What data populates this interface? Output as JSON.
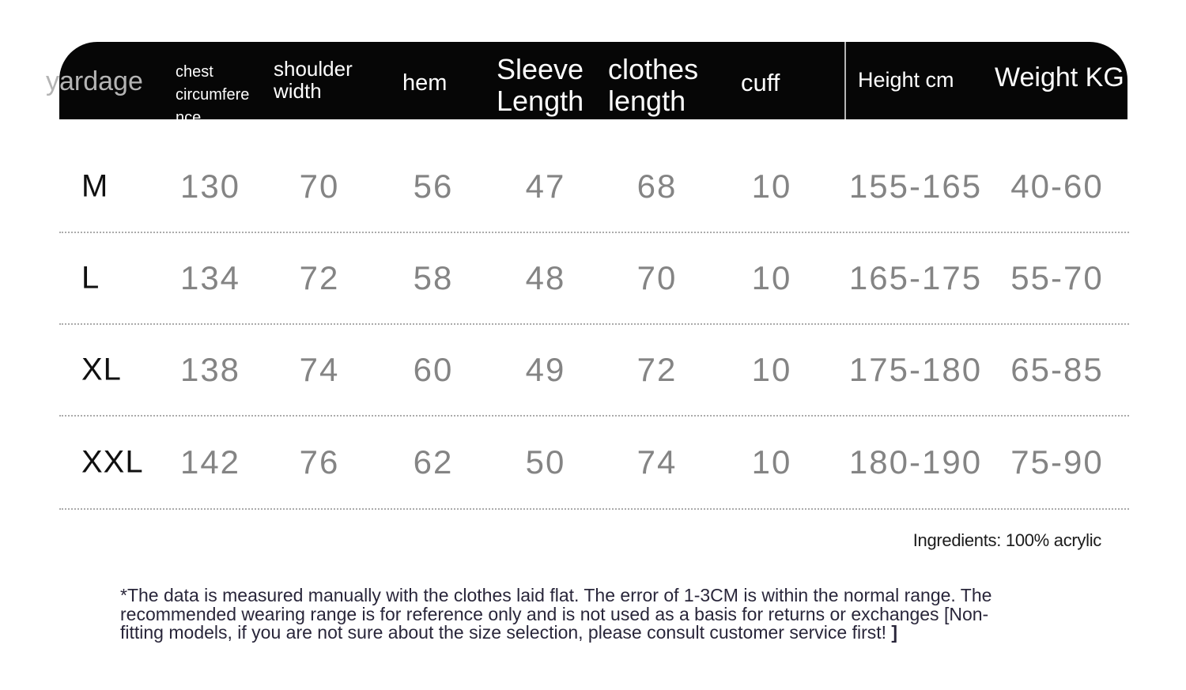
{
  "page": {
    "background": "#ffffff",
    "kind": "clothing-size-chart"
  },
  "colors": {
    "header_bg": "#060606",
    "header_text": "#fdfdfd",
    "yardage_text": "#b4b4b4",
    "header_divider": "#b5b5b5",
    "size_text": "#101010",
    "value_text": "#848484",
    "dotted_line": "#ababab",
    "ingredients_text": "#1b1b1b",
    "note_text": "#29263a"
  },
  "header": {
    "yardage_label": "yardage",
    "chest_line1": "chest",
    "chest_line2": "circumference",
    "shoulder_line1": "shoulder",
    "shoulder_line2": "width",
    "hem_label": "hem",
    "sleeve_line1": "Sleeve",
    "sleeve_line2": "Length",
    "clothes_line1": "clothes",
    "clothes_line2": "length",
    "cuff_label": "cuff",
    "height_label": "Height cm",
    "weight_label": "Weight KG"
  },
  "table": {
    "column_ids": [
      "yardage",
      "chest_circumference",
      "shoulder_width",
      "hem",
      "sleeve_length",
      "clothes_length",
      "cuff",
      "height_cm",
      "weight_kg"
    ],
    "rows": [
      {
        "size": "M",
        "chest": "130",
        "shoulder": "70",
        "hem": "56",
        "sleeve": "47",
        "clothes": "68",
        "cuff": "10",
        "height": "155-165",
        "weight": "40-60"
      },
      {
        "size": "L",
        "chest": "134",
        "shoulder": "72",
        "hem": "58",
        "sleeve": "48",
        "clothes": "70",
        "cuff": "10",
        "height": "165-175",
        "weight": "55-70"
      },
      {
        "size": "XL",
        "chest": "138",
        "shoulder": "74",
        "hem": "60",
        "sleeve": "49",
        "clothes": "72",
        "cuff": "10",
        "height": "175-180",
        "weight": "65-85"
      },
      {
        "size": "XXL",
        "chest": "142",
        "shoulder": "76",
        "hem": "62",
        "sleeve": "50",
        "clothes": "74",
        "cuff": "10",
        "height": "180-190",
        "weight": "75-90"
      }
    ]
  },
  "footer": {
    "ingredients": "Ingredients: 100% acrylic",
    "note_line1": "*The data is measured manually with the clothes laid flat. The error of 1-3CM is within the normal range. The",
    "note_line2": "recommended wearing range is for reference only and is not used as a basis for returns or exchanges [Non-",
    "note_line3": "fitting models, if you are not sure about the size selection, please consult customer service first! ",
    "note_bracket": "]"
  }
}
